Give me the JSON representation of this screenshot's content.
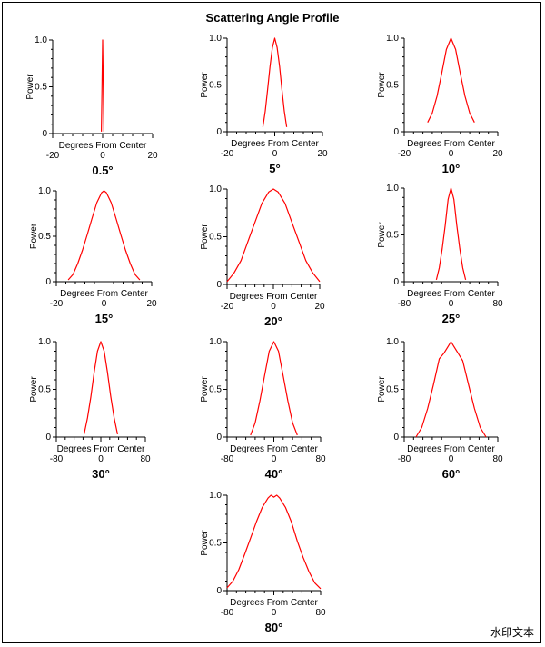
{
  "title": "Scattering Angle Profile",
  "watermark": "水印文本",
  "axis": {
    "xlabel": "Degrees From Center",
    "ylabel": "Power",
    "yticks": [
      "0",
      "0.5",
      "1.0"
    ]
  },
  "line_color": "#ff0000",
  "chart_data": [
    {
      "type": "line",
      "caption": "0.5°",
      "xlim": [
        -20,
        20
      ],
      "ylim": [
        0,
        1.0
      ],
      "xticks": [
        -20,
        0,
        20
      ],
      "x": [
        -0.5,
        -0.25,
        0,
        0.25,
        0.5
      ],
      "y": [
        0.02,
        0.5,
        1.0,
        0.5,
        0.02
      ]
    },
    {
      "type": "line",
      "caption": "5°",
      "xlim": [
        -20,
        20
      ],
      "ylim": [
        0,
        1.0
      ],
      "xticks": [
        -20,
        0,
        20
      ],
      "x": [
        -5,
        -4,
        -3,
        -2,
        -1,
        0,
        1,
        2,
        3,
        4,
        5
      ],
      "y": [
        0.05,
        0.22,
        0.45,
        0.7,
        0.9,
        1.0,
        0.9,
        0.7,
        0.45,
        0.22,
        0.05
      ]
    },
    {
      "type": "line",
      "caption": "10°",
      "xlim": [
        -20,
        20
      ],
      "ylim": [
        0,
        1.0
      ],
      "xticks": [
        -20,
        0,
        20
      ],
      "x": [
        -10,
        -8,
        -6,
        -4,
        -2,
        0,
        2,
        4,
        6,
        8,
        10
      ],
      "y": [
        0.1,
        0.2,
        0.38,
        0.62,
        0.88,
        1.0,
        0.88,
        0.62,
        0.38,
        0.2,
        0.1
      ]
    },
    {
      "type": "line",
      "caption": "15°",
      "xlim": [
        -20,
        20
      ],
      "ylim": [
        0,
        1.0
      ],
      "xticks": [
        -20,
        0,
        20
      ],
      "x": [
        -15,
        -13,
        -11,
        -9,
        -7,
        -5,
        -3,
        -1,
        0,
        1,
        3,
        5,
        7,
        9,
        11,
        13,
        15
      ],
      "y": [
        0.02,
        0.08,
        0.2,
        0.35,
        0.52,
        0.7,
        0.87,
        0.98,
        1.0,
        0.98,
        0.87,
        0.7,
        0.52,
        0.35,
        0.2,
        0.08,
        0.02
      ]
    },
    {
      "type": "line",
      "caption": "20°",
      "xlim": [
        -20,
        20
      ],
      "ylim": [
        0,
        1.0
      ],
      "xticks": [
        -20,
        0,
        20
      ],
      "x": [
        -20,
        -17,
        -14,
        -11,
        -8,
        -5,
        -2,
        0,
        2,
        5,
        8,
        11,
        14,
        17,
        20
      ],
      "y": [
        0.03,
        0.12,
        0.25,
        0.45,
        0.65,
        0.85,
        0.97,
        1.0,
        0.97,
        0.85,
        0.65,
        0.45,
        0.25,
        0.12,
        0.03
      ]
    },
    {
      "type": "line",
      "caption": "25°",
      "xlim": [
        -80,
        80
      ],
      "ylim": [
        0,
        1.0
      ],
      "xticks": [
        -80,
        0,
        80
      ],
      "x": [
        -25,
        -20,
        -15,
        -10,
        -5,
        0,
        5,
        10,
        15,
        20,
        25
      ],
      "y": [
        0.02,
        0.15,
        0.35,
        0.6,
        0.88,
        1.0,
        0.88,
        0.6,
        0.35,
        0.15,
        0.02
      ]
    },
    {
      "type": "line",
      "caption": "30°",
      "xlim": [
        -80,
        80
      ],
      "ylim": [
        0,
        1.0
      ],
      "xticks": [
        -80,
        0,
        80
      ],
      "x": [
        -30,
        -24,
        -18,
        -12,
        -6,
        0,
        6,
        12,
        18,
        24,
        30
      ],
      "y": [
        0.03,
        0.2,
        0.42,
        0.68,
        0.9,
        1.0,
        0.9,
        0.68,
        0.42,
        0.2,
        0.03
      ]
    },
    {
      "type": "line",
      "caption": "40°",
      "xlim": [
        -80,
        80
      ],
      "ylim": [
        0,
        1.0
      ],
      "xticks": [
        -80,
        0,
        80
      ],
      "x": [
        -40,
        -32,
        -24,
        -16,
        -8,
        0,
        8,
        16,
        24,
        32,
        40
      ],
      "y": [
        0.02,
        0.15,
        0.38,
        0.64,
        0.9,
        1.0,
        0.9,
        0.64,
        0.38,
        0.15,
        0.02
      ]
    },
    {
      "type": "line",
      "caption": "60°",
      "xlim": [
        -80,
        80
      ],
      "ylim": [
        0,
        1.0
      ],
      "xticks": [
        -80,
        0,
        80
      ],
      "x": [
        -60,
        -50,
        -40,
        -30,
        -20,
        -12,
        -5,
        0,
        5,
        12,
        20,
        30,
        40,
        50,
        60
      ],
      "y": [
        0.0,
        0.1,
        0.3,
        0.55,
        0.82,
        0.88,
        0.95,
        1.0,
        0.95,
        0.88,
        0.8,
        0.55,
        0.3,
        0.1,
        0.0
      ]
    },
    {
      "type": "line",
      "caption": "80°",
      "xlim": [
        -80,
        80
      ],
      "ylim": [
        0,
        1.0
      ],
      "xticks": [
        -80,
        0,
        80
      ],
      "x": [
        -80,
        -70,
        -60,
        -50,
        -40,
        -30,
        -20,
        -10,
        -5,
        0,
        5,
        10,
        20,
        30,
        40,
        50,
        60,
        70,
        80
      ],
      "y": [
        0.03,
        0.1,
        0.22,
        0.38,
        0.55,
        0.72,
        0.87,
        0.97,
        1.0,
        0.98,
        1.0,
        0.97,
        0.87,
        0.72,
        0.52,
        0.35,
        0.2,
        0.08,
        0.02
      ]
    }
  ]
}
